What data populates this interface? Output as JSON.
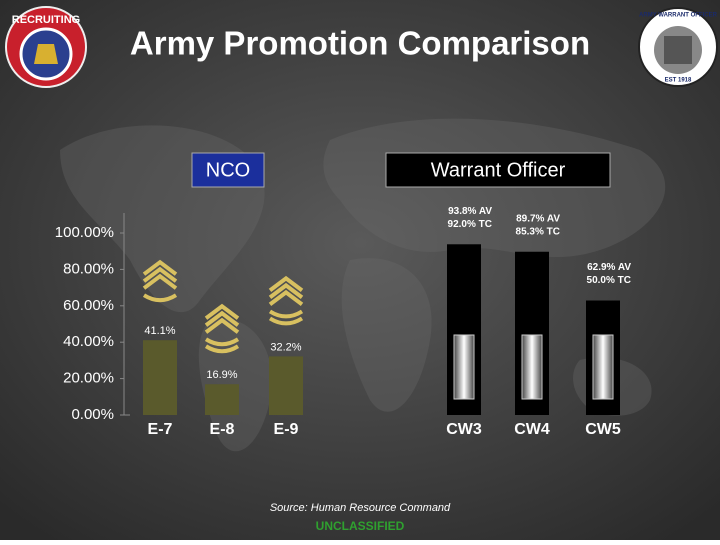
{
  "header": {
    "title": "Army Promotion Comparison",
    "left_logo": "RECRUITING",
    "right_logo": "ARMY WARRANT OFFICER",
    "right_logo_year": "EST 1918"
  },
  "groups": [
    "NCO",
    "Warrant Officer"
  ],
  "chart_data": {
    "type": "bar",
    "categories": [
      "E-7",
      "E-8",
      "E-9",
      "CW3",
      "CW4",
      "CW5"
    ],
    "values": [
      41.1,
      16.9,
      32.2,
      93.8,
      89.7,
      62.9
    ],
    "value_labels": [
      "41.1%",
      "16.9%",
      "32.2%",
      [
        "93.8% AV",
        "92.0% TC"
      ],
      [
        "89.7% AV",
        "85.3% TC"
      ],
      [
        "62.9% AV",
        "50.0% TC"
      ]
    ],
    "colors": [
      "#5a5a2c",
      "#5a5a2c",
      "#5a5a2c",
      "#000000",
      "#000000",
      "#000000"
    ],
    "ylim": [
      0,
      100
    ],
    "yticks": [
      {
        "value": 0,
        "label": "0.00%"
      },
      {
        "value": 20,
        "label": "20.00%"
      },
      {
        "value": 40,
        "label": "40.00%"
      },
      {
        "value": 60,
        "label": "60.00%"
      },
      {
        "value": 80,
        "label": "80.00%"
      },
      {
        "value": 100,
        "label": "100.00%"
      }
    ]
  },
  "source": "Source: Human Resource Command",
  "classification": "UNCLASSIFIED"
}
